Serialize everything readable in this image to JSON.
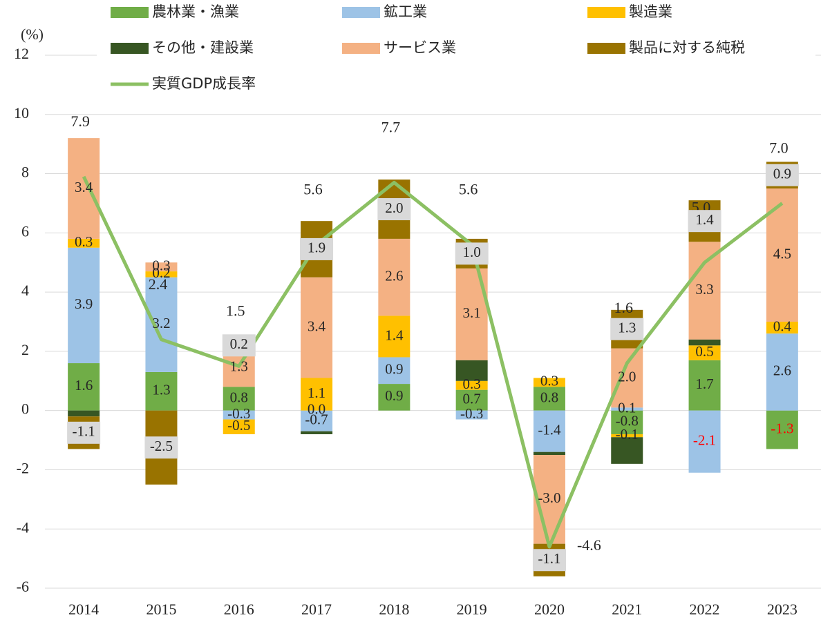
{
  "chart_data": {
    "type": "bar",
    "y_label": "(%)",
    "categories": [
      "2014",
      "2015",
      "2016",
      "2017",
      "2018",
      "2019",
      "2020",
      "2021",
      "2022",
      "2023"
    ],
    "ylim": [
      -6,
      12
    ],
    "yticks": [
      -6,
      -4,
      -2,
      0,
      2,
      4,
      6,
      8,
      10,
      12
    ],
    "grid": true,
    "legend": "top",
    "series": [
      {
        "name": "農林業・漁業",
        "color": "#70ad47",
        "values": [
          1.6,
          1.3,
          0.8,
          0.0,
          0.9,
          0.7,
          0.8,
          -0.8,
          1.7,
          -1.3
        ],
        "value_labels": [
          "1.6",
          "1.3",
          "0.8",
          "0.0",
          "0.9",
          "0.7",
          "0.8",
          "-0.8",
          "1.7",
          "-1.3"
        ],
        "value_label_colors": [
          null,
          null,
          null,
          null,
          null,
          null,
          null,
          null,
          null,
          "#ff0000"
        ]
      },
      {
        "name": "鉱工業",
        "color": "#9dc3e6",
        "values": [
          3.9,
          3.2,
          -0.3,
          -0.7,
          0.9,
          -0.3,
          -1.4,
          0.1,
          -2.1,
          2.6
        ],
        "value_labels": [
          "3.9",
          "3.2",
          "-0.3",
          "-0.7",
          "0.9",
          "-0.3",
          "-1.4",
          "0.1",
          "-2.1",
          "2.6"
        ],
        "value_label_colors": [
          null,
          null,
          null,
          null,
          null,
          null,
          null,
          null,
          "#ff0000",
          null
        ]
      },
      {
        "name": "製造業",
        "color": "#ffc000",
        "values": [
          0.3,
          0.2,
          -0.5,
          1.1,
          1.4,
          0.3,
          0.3,
          -0.1,
          0.5,
          0.4
        ],
        "value_labels": [
          "0.3",
          "0.2",
          "-0.5",
          "1.1",
          "1.4",
          "0.3",
          "0.3",
          "-0.1",
          "0.5",
          "0.4"
        ]
      },
      {
        "name": "その他・建設業",
        "color": "#375623",
        "values": [
          -0.2,
          0.0,
          0.0,
          -0.1,
          0.0,
          0.7,
          -0.1,
          -0.9,
          0.2,
          0.0
        ]
      },
      {
        "name": "サービス業",
        "color": "#f4b183",
        "values": [
          3.4,
          0.3,
          1.3,
          3.4,
          2.6,
          3.1,
          -3.0,
          2.0,
          3.3,
          4.5
        ],
        "value_labels": [
          "3.4",
          "0.3",
          "1.3",
          "3.4",
          "2.6",
          "3.1",
          "-3.0",
          "2.0",
          "3.3",
          "4.5"
        ]
      },
      {
        "name": "製品に対する純税",
        "color": "#997300",
        "label_box": "#d9d9d9",
        "values": [
          -1.1,
          -2.5,
          0.2,
          1.9,
          2.0,
          1.0,
          -1.1,
          1.3,
          1.4,
          0.9
        ],
        "value_labels": [
          "-1.1",
          "-2.5",
          "0.2",
          "1.9",
          "2.0",
          "1.0",
          "-1.1",
          "1.3",
          "1.4",
          "0.9"
        ]
      },
      {
        "name": "実質GDP成長率",
        "type": "line",
        "color": "#8cc063",
        "values": [
          7.9,
          2.4,
          1.5,
          5.6,
          7.7,
          5.6,
          -4.6,
          1.6,
          5.0,
          7.0
        ],
        "value_labels": [
          "7.9",
          "2.4",
          "1.5",
          "5.6",
          "7.7",
          "5.6",
          "-4.6",
          "1.6",
          "5.0",
          "7.0"
        ]
      }
    ]
  }
}
